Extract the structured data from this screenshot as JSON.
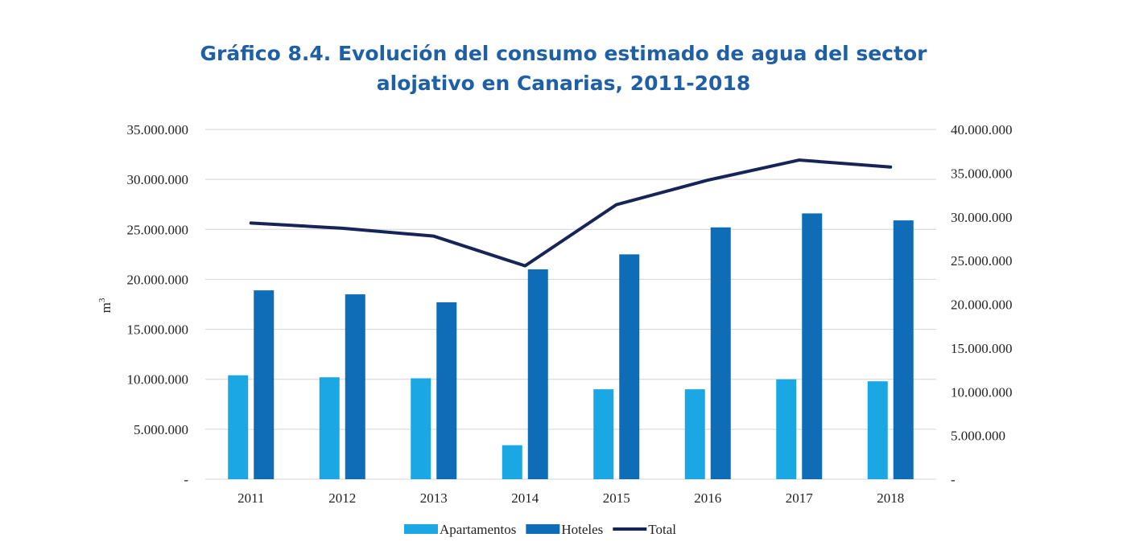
{
  "title_lines": [
    "Gráfico 8.4. Evolución del consumo estimado de agua del sector",
    "alojativo en Canarias, 2011-2018"
  ],
  "colors": {
    "title": "#1f5fa6",
    "apartamentos": "#1aa7e4",
    "hoteles": "#0f6db8",
    "total": "#172457",
    "grid": "#d3d3d3"
  },
  "chart_data": {
    "type": "bar",
    "categories": [
      "2011",
      "2012",
      "2013",
      "2014",
      "2015",
      "2016",
      "2017",
      "2018"
    ],
    "ylabel": "m",
    "ylabel_sup": "3",
    "ylim": [
      0,
      35000000
    ],
    "y_ticks": [
      "-",
      "5.000.000",
      "10.000.000",
      "15.000.000",
      "20.000.000",
      "25.000.000",
      "30.000.000",
      "35.000.000"
    ],
    "y2lim": [
      0,
      40000000
    ],
    "y2_ticks": [
      "-",
      "5.000.000",
      "10.000.000",
      "15.000.000",
      "20.000.000",
      "25.000.000",
      "30.000.000",
      "35.000.000",
      "40.000.000"
    ],
    "grid": true,
    "legend_position": "bottom",
    "series": [
      {
        "name": "Apartamentos",
        "type": "bar",
        "axis": "left",
        "values": [
          10400000,
          10200000,
          10100000,
          3400000,
          9000000,
          9000000,
          10000000,
          9800000
        ]
      },
      {
        "name": "Hoteles",
        "type": "bar",
        "axis": "left",
        "values": [
          18900000,
          18500000,
          17700000,
          21000000,
          22500000,
          25200000,
          26600000,
          25900000
        ]
      },
      {
        "name": "Total",
        "type": "line",
        "axis": "right",
        "values": [
          29300000,
          28700000,
          27800000,
          24400000,
          31400000,
          34200000,
          36500000,
          35700000
        ]
      }
    ]
  }
}
